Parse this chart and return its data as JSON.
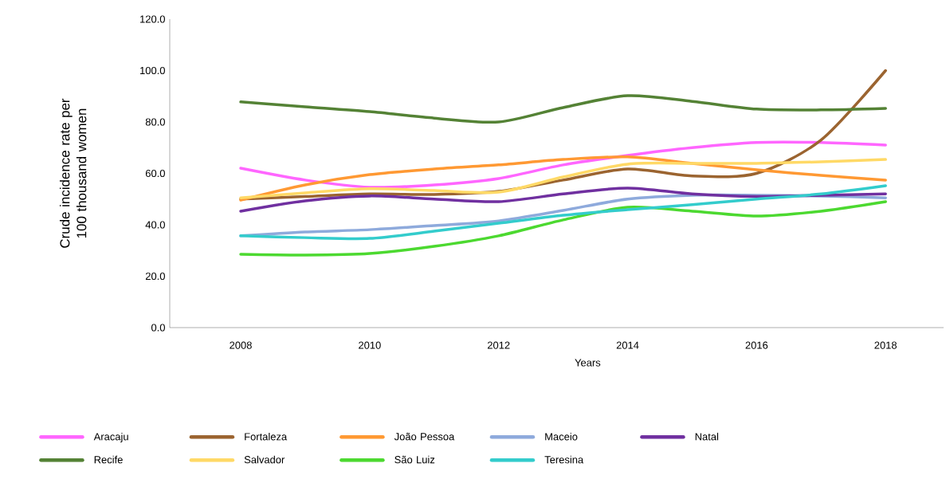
{
  "chart_data": {
    "type": "line",
    "xlabel": "Years",
    "ylabel": "Crude incidence rate per 100 thousand women",
    "x": [
      2008,
      2009,
      2010,
      2011,
      2012,
      2013,
      2014,
      2015,
      2016,
      2017,
      2018
    ],
    "xlim": [
      2006.9,
      2018.9
    ],
    "xticks": [
      2008,
      2010,
      2012,
      2014,
      2016,
      2018
    ],
    "ylim": [
      0,
      120
    ],
    "yticks": [
      {
        "value": 0,
        "label": "0.0"
      },
      {
        "value": 20,
        "label": "20.0"
      },
      {
        "value": 40,
        "label": "40.0"
      },
      {
        "value": 60,
        "label": "60.0"
      },
      {
        "value": 80,
        "label": "80.0"
      },
      {
        "value": 100,
        "label": "100.0"
      },
      {
        "value": 120,
        "label": "120.0"
      }
    ],
    "grid": false,
    "legend": "bottom",
    "marker": "none",
    "line_style": "solid",
    "series": [
      {
        "name": "Aracaju",
        "color": "#ff66ff",
        "values": [
          62,
          57.4,
          54.6,
          55.5,
          58,
          63.3,
          67,
          70,
          72,
          72,
          71
        ]
      },
      {
        "name": "Fortaleza",
        "color": "#9b6430",
        "values": [
          50,
          51,
          52,
          51.8,
          53,
          57.4,
          61.7,
          59,
          60,
          73,
          100
        ]
      },
      {
        "name": "João Pessoa",
        "color": "#ff9933",
        "values": [
          49.6,
          55.5,
          59.5,
          61.7,
          63.3,
          65.4,
          66.4,
          63.9,
          61.4,
          59.2,
          57.4
        ]
      },
      {
        "name": "Maceio",
        "color": "#8eaadc",
        "values": [
          35.7,
          37.2,
          38.1,
          39.7,
          41.5,
          45.6,
          50,
          51.5,
          51.5,
          51.2,
          50.5
        ]
      },
      {
        "name": "Natal",
        "color": "#7030a0",
        "values": [
          45.3,
          49.3,
          51.2,
          50,
          49,
          52,
          54.3,
          52,
          51,
          51.5,
          52
        ]
      },
      {
        "name": "Recife",
        "color": "#548235",
        "values": [
          87.8,
          85.9,
          84,
          81.5,
          80,
          85.6,
          90.2,
          88,
          85,
          84.7,
          85.3
        ]
      },
      {
        "name": "Salvador",
        "color": "#ffd966",
        "values": [
          50.5,
          52.4,
          54,
          53.3,
          52.7,
          58.6,
          63.6,
          63.9,
          63.9,
          64.5,
          65.4
        ]
      },
      {
        "name": "São Luiz",
        "color": "#4cd930",
        "values": [
          28.5,
          28.2,
          28.8,
          31.6,
          35.7,
          41.9,
          46.8,
          45.3,
          43.4,
          45.3,
          49
        ]
      },
      {
        "name": "Teresina",
        "color": "#33cccc",
        "values": [
          35.7,
          35,
          34.7,
          37.5,
          40.6,
          43.7,
          45.9,
          47.8,
          50,
          52,
          55.2
        ]
      }
    ]
  }
}
